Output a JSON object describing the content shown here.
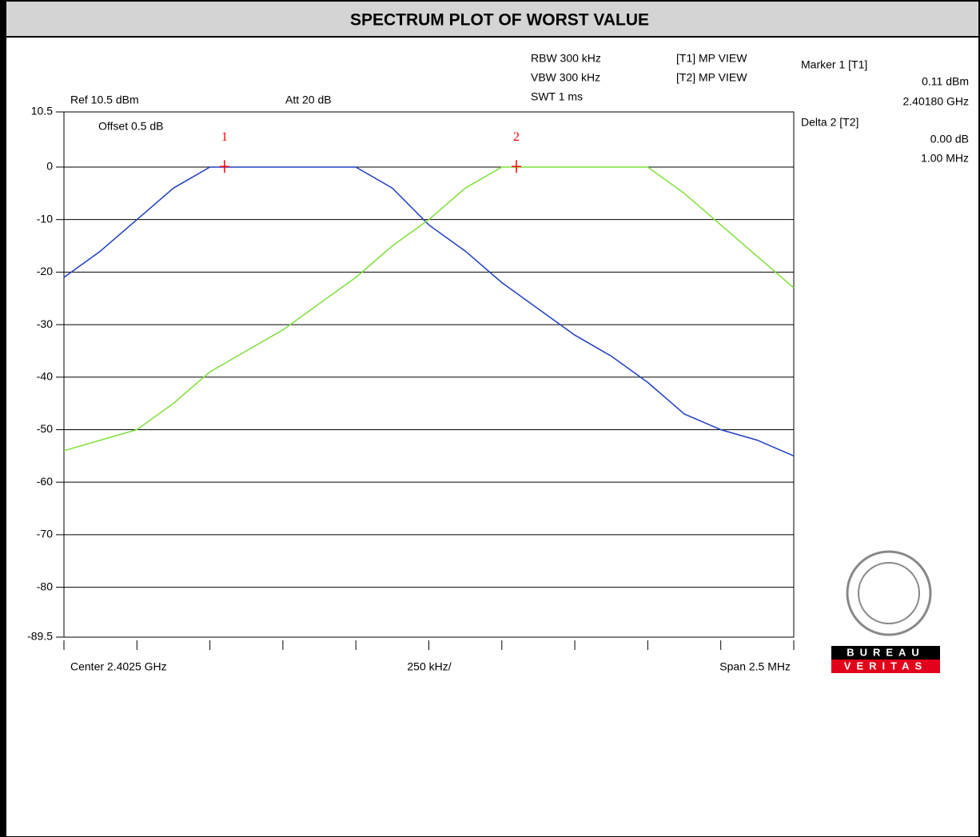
{
  "chart_data": {
    "type": "line",
    "title": "SPECTRUM PLOT OF WORST VALUE",
    "annotations": [
      "RBW 300 kHz",
      "VBW 300 kHz",
      "SWT 1 ms",
      "[T1] MP VIEW",
      "[T2] MP VIEW",
      "Marker 1 [T1]",
      "0.11 dBm",
      "2.40180 GHz",
      "Delta 2 [T2]",
      "0.00 dB",
      "1.00 MHz",
      "Ref 10.5 dBm",
      "Att  20 dB",
      "Offset 0.5 dB",
      "Center 2.4025 GHz",
      "250 kHz/",
      "Span 2.5 MHz"
    ],
    "logo": [
      "BUREAU",
      "VERITAS"
    ],
    "x": [
      2.40125,
      2.401375,
      2.4015,
      2.401625,
      2.40175,
      2.401875,
      2.402,
      2.402125,
      2.40225,
      2.402375,
      2.4025,
      2.402625,
      2.40275,
      2.402875,
      2.403,
      2.403125,
      2.40325,
      2.403375,
      2.4035,
      2.403625,
      2.40375
    ],
    "series": [
      {
        "name": "T1",
        "color": "#1f3fc0",
        "values": [
          -21,
          -16,
          -10,
          -4,
          0,
          0,
          0,
          0,
          0,
          -4,
          -11,
          -16,
          -22,
          -27,
          -32,
          -36,
          -41,
          -47,
          -50,
          -52,
          -55
        ]
      },
      {
        "name": "T2",
        "color": "#7fe03a",
        "values": [
          -54,
          -52,
          -50,
          -45,
          -39,
          -35,
          -31,
          -26,
          -21,
          -15,
          -10,
          -4,
          0,
          0,
          0,
          0,
          0,
          -5,
          -11,
          -17,
          -23
        ]
      }
    ],
    "markers": [
      {
        "label": "1",
        "x": 2.4018,
        "y": 0.11
      },
      {
        "label": "2",
        "x": 2.4028,
        "y": 0.11
      }
    ],
    "xlim": [
      2.40125,
      2.40375
    ],
    "xticks": [
      2.40125,
      2.4015,
      2.40175,
      2.402,
      2.40225,
      2.4025,
      2.40275,
      2.403,
      2.40325,
      2.4035,
      2.40375
    ],
    "ylim": [
      -89.5,
      10.5
    ],
    "yticks": [
      10.5,
      0,
      -10,
      -20,
      -30,
      -40,
      -50,
      -60,
      -70,
      -80,
      -89.5
    ],
    "grid": true
  }
}
